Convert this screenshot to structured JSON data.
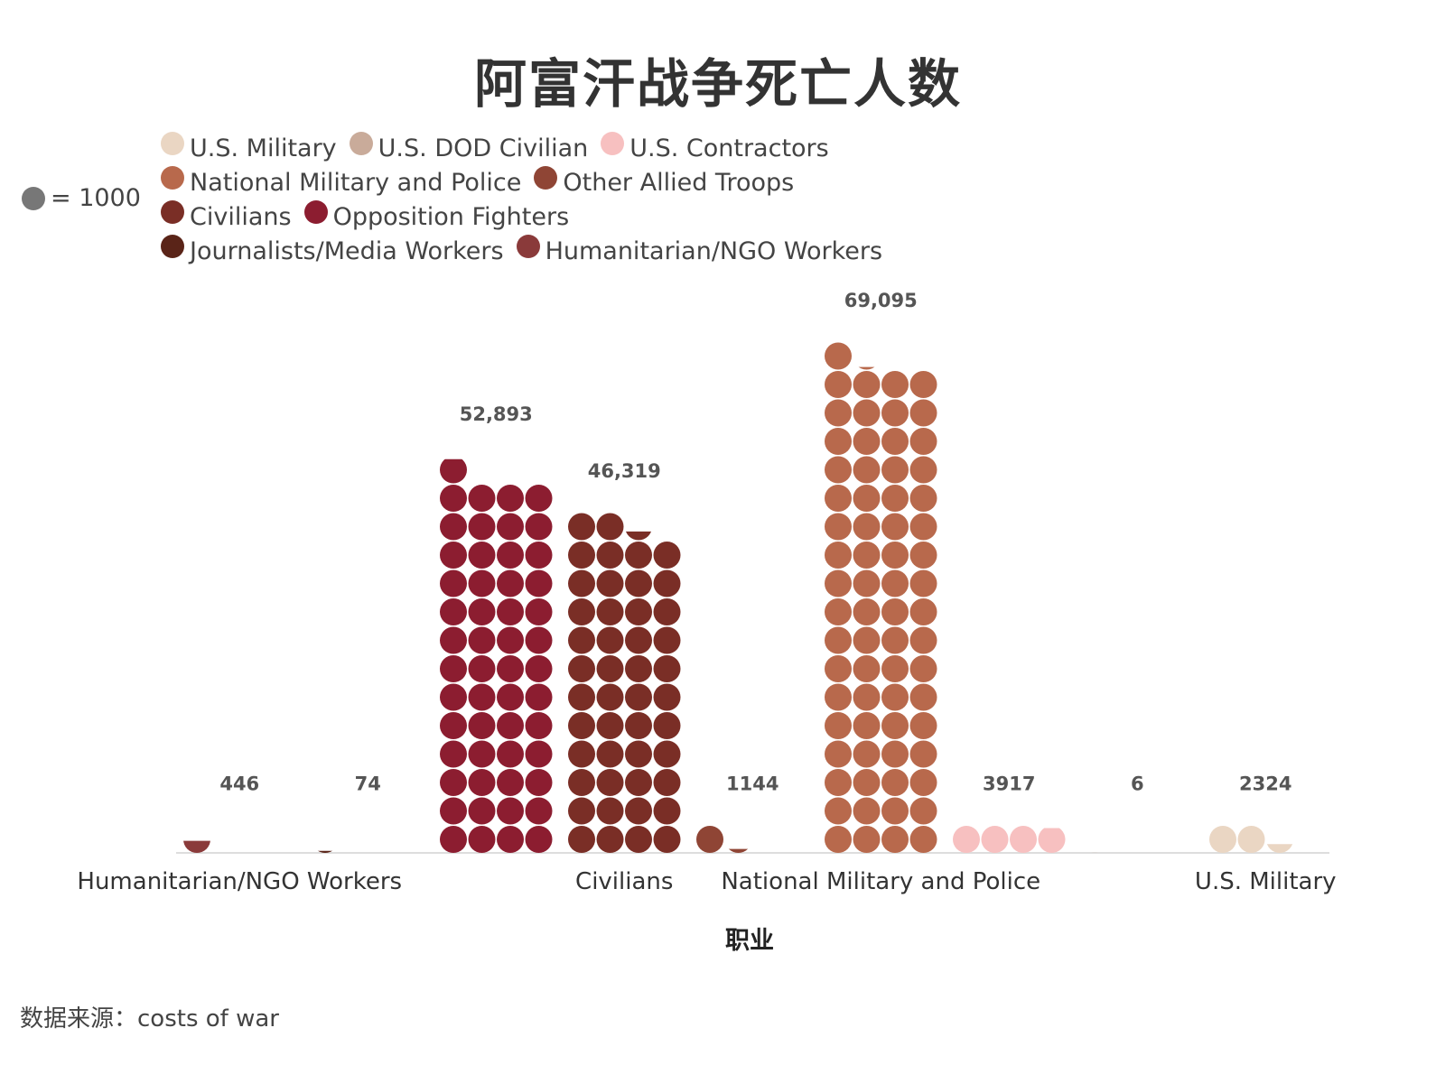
{
  "title": "阿富汗战争死亡人数",
  "unit_legend": {
    "label": "= 1000",
    "color": "#777777"
  },
  "legend": [
    {
      "label": "U.S. Military",
      "color": "#ead6c3"
    },
    {
      "label": "U.S. DOD Civilian",
      "color": "#c9ab9a"
    },
    {
      "label": "U.S. Contractors",
      "color": "#f7c0c0"
    },
    {
      "label": "National Military and Police",
      "color": "#b8694c"
    },
    {
      "label": "Other Allied Troops",
      "color": "#8f4535"
    },
    {
      "label": "Civilians",
      "color": "#7a2e26"
    },
    {
      "label": "Opposition Fighters",
      "color": "#8c1d30"
    },
    {
      "label": "Journalists/Media Workers",
      "color": "#5a2418"
    },
    {
      "label": "Humanitarian/NGO Workers",
      "color": "#8a3a3a"
    }
  ],
  "source": "数据来源：costs of war",
  "chart_data": {
    "type": "pictograph",
    "unit": 1000,
    "title": "阿富汗战争死亡人数",
    "xlabel": "职业",
    "ylabel": "",
    "grid": false,
    "legend_position": "top-left",
    "categories": [
      "Humanitarian/NGO Workers",
      "Journalists/Media Workers",
      "Opposition Fighters",
      "Civilians",
      "Other Allied Troops",
      "National Military and Police",
      "U.S. Contractors",
      "U.S. DOD Civilian",
      "U.S. Military"
    ],
    "values": [
      446,
      74,
      52893,
      46319,
      1144,
      69095,
      3917,
      6,
      2324
    ],
    "value_labels": [
      "446",
      "74",
      "52,893",
      "46,319",
      "1144",
      "69,095",
      "3917",
      "6",
      "2324"
    ],
    "tick_labels": [
      "Humanitarian/NGO Workers",
      "",
      "",
      "Civilians",
      "",
      "National Military and Police",
      "",
      "",
      "U.S. Military"
    ],
    "colors": [
      "#8a3a3a",
      "#5a2418",
      "#8c1d30",
      "#7a2e26",
      "#8f4535",
      "#b8694c",
      "#f7c0c0",
      "#c9ab9a",
      "#ead6c3"
    ]
  }
}
